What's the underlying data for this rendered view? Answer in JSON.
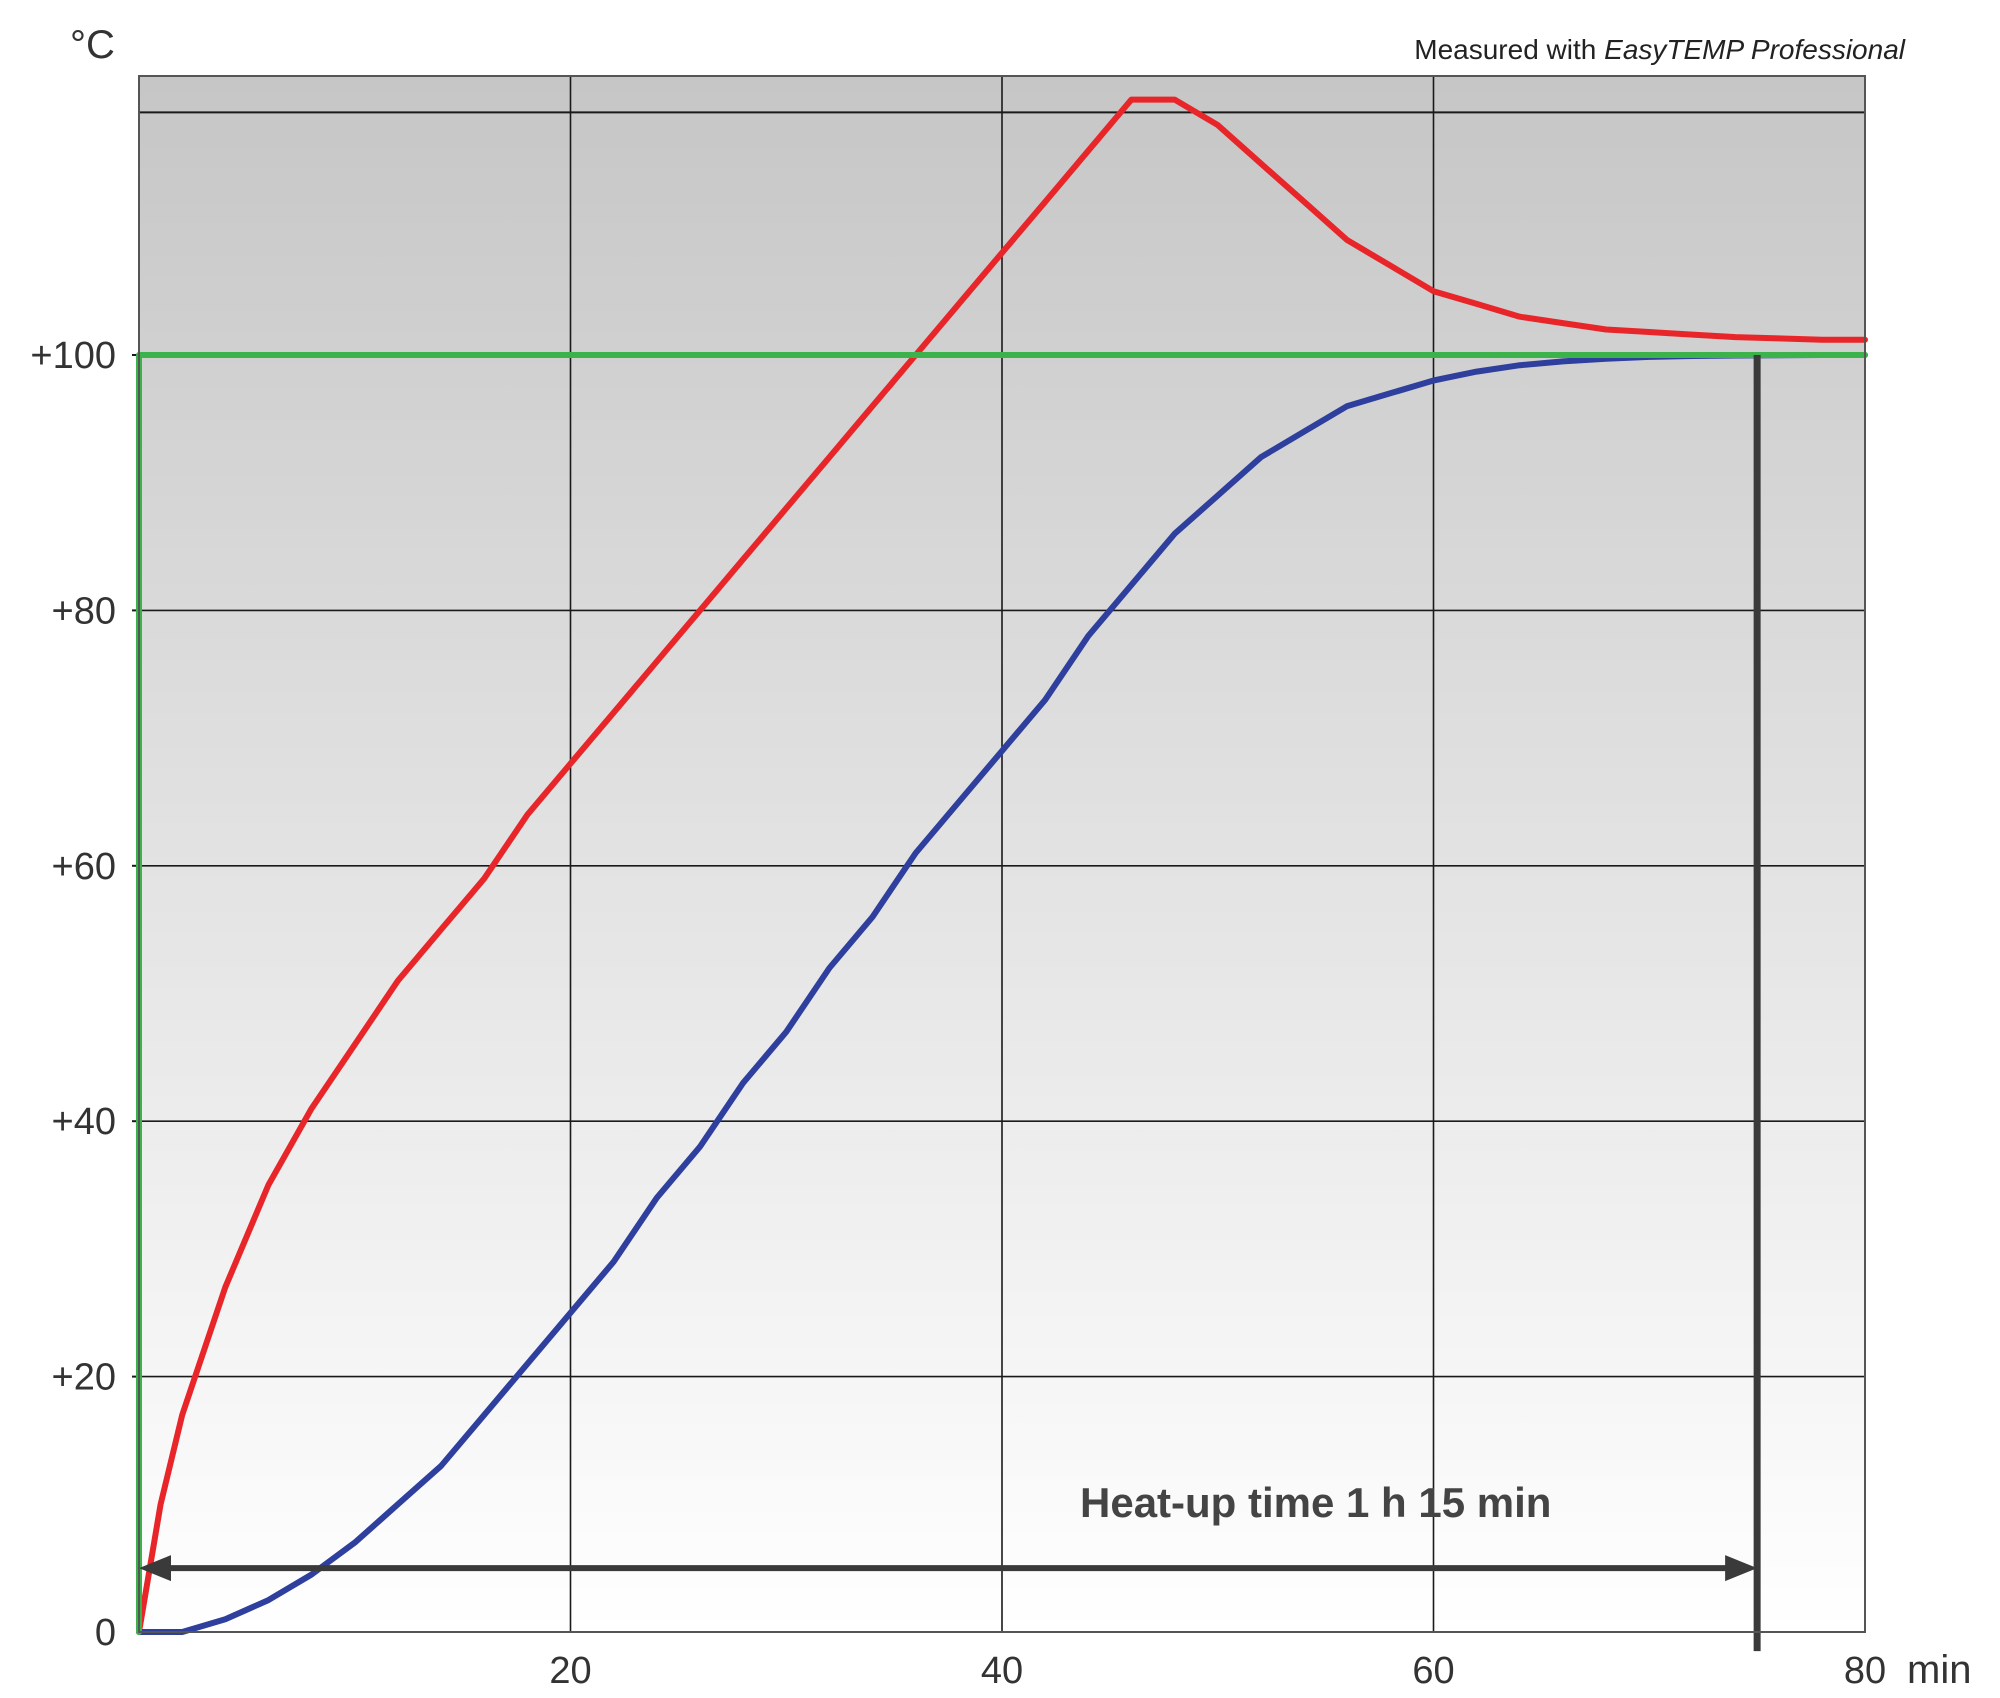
{
  "chart_data": {
    "type": "line",
    "title": "",
    "note_prefix": "Measured with ",
    "note_product": "EasyTEMP Professional",
    "xlabel": "min",
    "ylabel": "°C",
    "xlim": [
      0,
      80
    ],
    "ylim": [
      0,
      120
    ],
    "grid": true,
    "x_ticks": [
      {
        "value": 20,
        "label": "20"
      },
      {
        "value": 40,
        "label": "40"
      },
      {
        "value": 60,
        "label": "60"
      },
      {
        "value": 80,
        "label": "80"
      }
    ],
    "y_ticks": [
      {
        "value": 0,
        "label": "0"
      },
      {
        "value": 20,
        "label": "+20"
      },
      {
        "value": 40,
        "label": "+40"
      },
      {
        "value": 60,
        "label": "+60"
      },
      {
        "value": 80,
        "label": "+80"
      },
      {
        "value": 100,
        "label": "+100"
      }
    ],
    "series": [
      {
        "color": "#e8262a",
        "points": [
          [
            0,
            0
          ],
          [
            1,
            10
          ],
          [
            2,
            17
          ],
          [
            4,
            27
          ],
          [
            6,
            35
          ],
          [
            8,
            41
          ],
          [
            10,
            46
          ],
          [
            12,
            51
          ],
          [
            14,
            55
          ],
          [
            16,
            59
          ],
          [
            18,
            64
          ],
          [
            20,
            68
          ],
          [
            22,
            72
          ],
          [
            24,
            76
          ],
          [
            26,
            80
          ],
          [
            28,
            84
          ],
          [
            30,
            88
          ],
          [
            32,
            92
          ],
          [
            34,
            96
          ],
          [
            36,
            100
          ],
          [
            38,
            104
          ],
          [
            40,
            108
          ],
          [
            42,
            112
          ],
          [
            44,
            116
          ],
          [
            46,
            120
          ],
          [
            48,
            120
          ],
          [
            50,
            118
          ],
          [
            52,
            115
          ],
          [
            54,
            112
          ],
          [
            56,
            109
          ],
          [
            58,
            107
          ],
          [
            60,
            105
          ],
          [
            62,
            104
          ],
          [
            64,
            103
          ],
          [
            66,
            102.5
          ],
          [
            68,
            102
          ],
          [
            70,
            101.8
          ],
          [
            72,
            101.6
          ],
          [
            74,
            101.4
          ],
          [
            76,
            101.3
          ],
          [
            78,
            101.2
          ],
          [
            80,
            101.2
          ]
        ]
      },
      {
        "color": "#2e3f9e",
        "points": [
          [
            0,
            0
          ],
          [
            2,
            0
          ],
          [
            4,
            1
          ],
          [
            6,
            2.5
          ],
          [
            8,
            4.5
          ],
          [
            10,
            7
          ],
          [
            12,
            10
          ],
          [
            14,
            13
          ],
          [
            16,
            17
          ],
          [
            18,
            21
          ],
          [
            20,
            25
          ],
          [
            22,
            29
          ],
          [
            24,
            34
          ],
          [
            26,
            38
          ],
          [
            28,
            43
          ],
          [
            30,
            47
          ],
          [
            32,
            52
          ],
          [
            34,
            56
          ],
          [
            36,
            61
          ],
          [
            38,
            65
          ],
          [
            40,
            69
          ],
          [
            42,
            73
          ],
          [
            44,
            78
          ],
          [
            46,
            82
          ],
          [
            48,
            86
          ],
          [
            50,
            89
          ],
          [
            52,
            92
          ],
          [
            54,
            94
          ],
          [
            56,
            96
          ],
          [
            58,
            97
          ],
          [
            60,
            98
          ],
          [
            62,
            98.7
          ],
          [
            64,
            99.2
          ],
          [
            66,
            99.5
          ],
          [
            68,
            99.7
          ],
          [
            70,
            99.85
          ],
          [
            72,
            99.92
          ],
          [
            74,
            99.96
          ],
          [
            76,
            99.98
          ],
          [
            78,
            100
          ],
          [
            80,
            100
          ]
        ]
      },
      {
        "color": "#3cb34a",
        "points": [
          [
            0,
            0
          ],
          [
            0,
            100
          ],
          [
            80,
            100
          ]
        ]
      }
    ],
    "top_reference_line": 119,
    "annotation": {
      "text": "Heat-up time 1 h 15 min",
      "x_start": 0,
      "x_end": 75,
      "arrow_y": 5,
      "marker_x": 75,
      "marker_y_top": 100,
      "marker_y_bottom": -1.5
    },
    "colors": {
      "plot_background_top": "#c6c6c6",
      "plot_background_bottom": "#ffffff",
      "gridline": "#1a1a1a",
      "annotation": "#3a3a3a"
    }
  }
}
